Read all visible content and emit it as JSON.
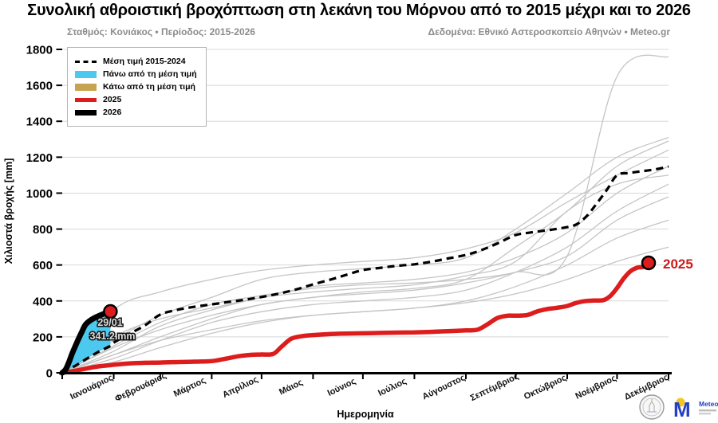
{
  "header": {
    "title": "Συνολική αθροιστική βροχόπτωση στη λεκάνη του Μόρνου από το 2015 μέχρι και το 2026",
    "subtitle_left": "Σταθμός: Κονιάκος • Περίοδος: 2015-2026",
    "subtitle_right": "Δεδομένα: Εθνικό Αστεροσκοπείο Αθηνών • Meteo.gr"
  },
  "colors": {
    "red": "#dd1d1d",
    "black": "#000000",
    "cyan": "#4dc8ef",
    "tan": "#c7a34f",
    "historical_gray": "#c5c5c5",
    "grid": "#d8d8d8",
    "subtitle_gray": "#8c8c8c",
    "meteo_blue": "#2441c4",
    "meteo_yellow": "#f6c51e"
  },
  "legend": {
    "items": [
      {
        "label": "Μέση τιμή 2015-2024",
        "swatch": {
          "kind": "dashed",
          "color": "#000000"
        }
      },
      {
        "label": "Πάνω από τη μέση τιμή",
        "swatch": {
          "kind": "patch",
          "color": "#4dc8ef"
        }
      },
      {
        "label": "Κάτω από τη μέση τιμή",
        "swatch": {
          "kind": "patch",
          "color": "#c7a34f"
        }
      },
      {
        "label": "2025",
        "swatch": {
          "kind": "line",
          "color": "#dd1d1d",
          "thickness": 5
        }
      },
      {
        "label": "2026",
        "swatch": {
          "kind": "line",
          "color": "#000000",
          "thickness": 7
        }
      }
    ]
  },
  "annotation": {
    "line1": "29/01",
    "line2": "341.2 mm"
  },
  "end_label_2025": "2025",
  "logos": {
    "meteo_text": "Meteo"
  },
  "chart_data": {
    "type": "line",
    "title": "Συνολική αθροιστική βροχόπτωση στη λεκάνη του Μόρνου από το 2015 μέχρι και το 2026",
    "x_axis": {
      "label": "Ημερομηνία",
      "unit": "day_of_year",
      "range": [
        0,
        365
      ],
      "months": [
        "Ιανουάριος",
        "Φεβρουάριος",
        "Μάρτιος",
        "Απρίλιος",
        "Μάιος",
        "Ιούνιος",
        "Ιούλιος",
        "Αύγουστος",
        "Σεπτέμβριος",
        "Οκτώβριος",
        "Νοέμβριος",
        "Δεκέμβριος"
      ]
    },
    "y_axis": {
      "label": "Χιλιοστά βροχής [mm]",
      "range": [
        0,
        1800
      ],
      "ticks": [
        0,
        200,
        400,
        600,
        800,
        1000,
        1200,
        1400,
        1600,
        1800
      ],
      "grid": true
    },
    "month_start_days": [
      0,
      31,
      59,
      90,
      120,
      151,
      181,
      212,
      243,
      273,
      304,
      334,
      365
    ],
    "series": [
      {
        "name": "hist-1",
        "role": "historical",
        "monthly": [
          0,
          150,
          280,
          380,
          430,
          470,
          490,
          500,
          520,
          560,
          650,
          1650,
          1760
        ]
      },
      {
        "name": "hist-2",
        "role": "historical",
        "monthly": [
          0,
          180,
          320,
          420,
          520,
          560,
          580,
          600,
          640,
          800,
          1000,
          1200,
          1310
        ]
      },
      {
        "name": "hist-3",
        "role": "historical",
        "monthly": [
          0,
          100,
          200,
          300,
          380,
          420,
          450,
          470,
          520,
          700,
          900,
          1150,
          1290
        ]
      },
      {
        "name": "hist-4",
        "role": "historical",
        "monthly": [
          0,
          350,
          450,
          520,
          570,
          600,
          620,
          640,
          690,
          780,
          950,
          1100,
          1240
        ]
      },
      {
        "name": "hist-5",
        "role": "historical",
        "monthly": [
          0,
          120,
          260,
          350,
          420,
          480,
          500,
          520,
          560,
          640,
          780,
          1000,
          1150
        ]
      },
      {
        "name": "hist-6",
        "role": "historical",
        "monthly": [
          0,
          200,
          300,
          360,
          420,
          450,
          470,
          490,
          540,
          620,
          900,
          1050,
          1100
        ]
      },
      {
        "name": "hist-7",
        "role": "historical",
        "monthly": [
          0,
          80,
          180,
          280,
          340,
          380,
          400,
          420,
          460,
          560,
          700,
          900,
          1050
        ]
      },
      {
        "name": "hist-8",
        "role": "historical",
        "monthly": [
          0,
          140,
          240,
          320,
          380,
          420,
          440,
          460,
          500,
          560,
          650,
          850,
          980
        ]
      },
      {
        "name": "hist-9",
        "role": "historical",
        "monthly": [
          0,
          60,
          140,
          220,
          280,
          320,
          340,
          360,
          400,
          480,
          600,
          750,
          850
        ]
      },
      {
        "name": "hist-10",
        "role": "historical",
        "monthly": [
          0,
          100,
          180,
          240,
          290,
          320,
          340,
          360,
          390,
          440,
          520,
          620,
          700
        ]
      },
      {
        "name": "Μέση τιμή 2015-2024",
        "role": "mean",
        "points": [
          [
            0,
            0
          ],
          [
            8,
            40
          ],
          [
            15,
            80
          ],
          [
            22,
            118
          ],
          [
            29,
            150
          ],
          [
            31,
            168
          ],
          [
            40,
            215
          ],
          [
            50,
            265
          ],
          [
            59,
            324
          ],
          [
            70,
            352
          ],
          [
            80,
            368
          ],
          [
            90,
            381
          ],
          [
            100,
            394
          ],
          [
            110,
            407
          ],
          [
            120,
            422
          ],
          [
            130,
            440
          ],
          [
            140,
            462
          ],
          [
            151,
            492
          ],
          [
            162,
            520
          ],
          [
            172,
            548
          ],
          [
            181,
            572
          ],
          [
            192,
            585
          ],
          [
            202,
            596
          ],
          [
            212,
            604
          ],
          [
            222,
            618
          ],
          [
            232,
            636
          ],
          [
            243,
            656
          ],
          [
            252,
            682
          ],
          [
            262,
            720
          ],
          [
            273,
            767
          ],
          [
            283,
            782
          ],
          [
            294,
            796
          ],
          [
            304,
            811
          ],
          [
            310,
            828
          ],
          [
            316,
            875
          ],
          [
            322,
            945
          ],
          [
            328,
            1020
          ],
          [
            334,
            1100
          ],
          [
            341,
            1112
          ],
          [
            349,
            1122
          ],
          [
            357,
            1132
          ],
          [
            365,
            1148
          ]
        ]
      },
      {
        "name": "2025",
        "role": "y2025",
        "points": [
          [
            0,
            0
          ],
          [
            8,
            12
          ],
          [
            15,
            25
          ],
          [
            22,
            36
          ],
          [
            31,
            45
          ],
          [
            40,
            52
          ],
          [
            50,
            56
          ],
          [
            59,
            57
          ],
          [
            70,
            60
          ],
          [
            80,
            62
          ],
          [
            90,
            65
          ],
          [
            98,
            78
          ],
          [
            106,
            92
          ],
          [
            114,
            100
          ],
          [
            120,
            102
          ],
          [
            127,
            105
          ],
          [
            132,
            145
          ],
          [
            138,
            190
          ],
          [
            145,
            205
          ],
          [
            151,
            210
          ],
          [
            160,
            215
          ],
          [
            170,
            218
          ],
          [
            181,
            220
          ],
          [
            192,
            222
          ],
          [
            202,
            224
          ],
          [
            212,
            225
          ],
          [
            222,
            228
          ],
          [
            232,
            232
          ],
          [
            243,
            236
          ],
          [
            250,
            240
          ],
          [
            256,
            270
          ],
          [
            262,
            305
          ],
          [
            268,
            318
          ],
          [
            273,
            318
          ],
          [
            280,
            322
          ],
          [
            286,
            342
          ],
          [
            292,
            355
          ],
          [
            298,
            362
          ],
          [
            304,
            372
          ],
          [
            309,
            388
          ],
          [
            314,
            398
          ],
          [
            320,
            402
          ],
          [
            326,
            405
          ],
          [
            330,
            428
          ],
          [
            334,
            472
          ],
          [
            338,
            525
          ],
          [
            342,
            565
          ],
          [
            346,
            585
          ],
          [
            350,
            590
          ],
          [
            353,
            612
          ]
        ]
      },
      {
        "name": "2026",
        "role": "y2026",
        "points": [
          [
            0,
            0
          ],
          [
            2,
            18
          ],
          [
            4,
            58
          ],
          [
            6,
            108
          ],
          [
            9,
            172
          ],
          [
            12,
            232
          ],
          [
            14,
            268
          ],
          [
            17,
            292
          ],
          [
            20,
            308
          ],
          [
            23,
            321
          ],
          [
            26,
            332
          ],
          [
            29,
            341.2
          ]
        ]
      }
    ],
    "fill_between": {
      "upper": "2026",
      "lower": "Μέση τιμή 2015-2024",
      "max_day": 29,
      "label": "Πάνω από τη μέση τιμή",
      "color": "#4dc8ef"
    },
    "markers": [
      {
        "series": "2026",
        "day": 29,
        "value": 341.2,
        "label_date": "29/01",
        "label_value": "341.2 mm"
      },
      {
        "series": "2025",
        "day": 353,
        "value": 612,
        "label": "2025"
      }
    ],
    "legend_position": "upper-left"
  }
}
